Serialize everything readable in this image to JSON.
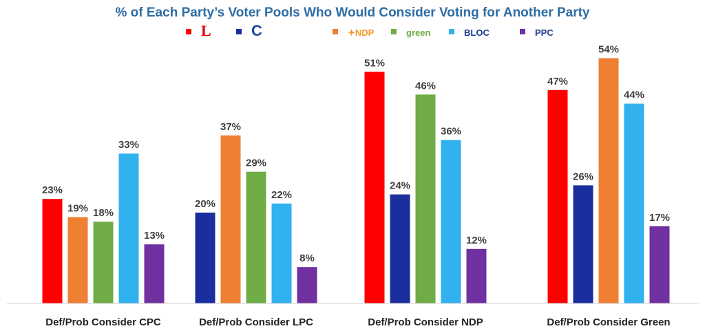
{
  "chart_data": {
    "type": "bar",
    "title": "% of Each Party’s Voter Pools Who Would Consider Voting for Another Party",
    "categories": [
      "Def/Prob Consider CPC",
      "Def/Prob Consider LPC",
      "Def/Prob Consider NDP",
      "Def/Prob Consider Green"
    ],
    "ylim": [
      0,
      55
    ],
    "grid": false,
    "legend_position": "top",
    "series": [
      {
        "name": "LPC",
        "legend_label": "L",
        "color": "#ff0000",
        "values": [
          23,
          null,
          51,
          47
        ]
      },
      {
        "name": "CPC",
        "legend_label": "C",
        "color": "#1a2f9e",
        "values": [
          null,
          20,
          24,
          26
        ]
      },
      {
        "name": "NDP",
        "legend_label": "NDP",
        "color": "#ef7f32",
        "values": [
          19,
          37,
          null,
          54
        ]
      },
      {
        "name": "Green",
        "legend_label": "green",
        "color": "#6fac46",
        "values": [
          18,
          29,
          46,
          null
        ]
      },
      {
        "name": "Bloc Québécois",
        "legend_label": "BLOC",
        "color": "#31b2ef",
        "values": [
          33,
          22,
          36,
          44
        ]
      },
      {
        "name": "PPC",
        "legend_label": "PPC",
        "color": "#7030a0",
        "values": [
          13,
          8,
          12,
          17
        ]
      }
    ],
    "value_suffix": "%"
  }
}
